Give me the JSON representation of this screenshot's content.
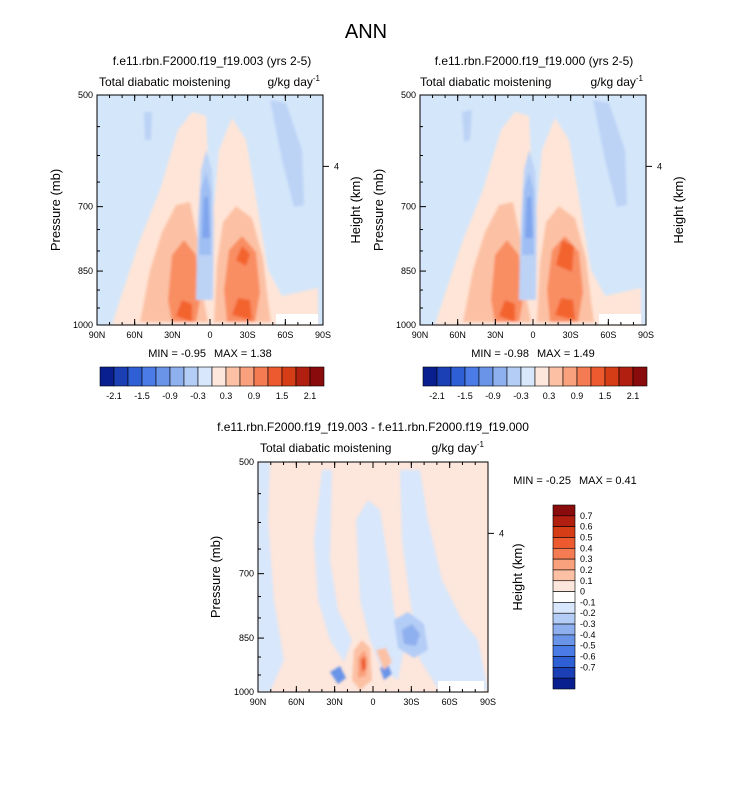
{
  "page_title": "ANN",
  "colors": {
    "background_field": "#d4e6fa",
    "positive": [
      "#ffe5d7",
      "#fcc1a4",
      "#f98e63",
      "#f3632f",
      "#d43d15"
    ],
    "negative": [
      "#bcd3f6",
      "#9fbef3",
      "#80a5ee",
      "#6a94e8"
    ]
  },
  "chart_data": [
    {
      "type": "heatmap",
      "id": "panel-a",
      "title": "f.e11.rbn.F2000.f19_f19.003 (yrs 2-5)",
      "left_label": "Total diabatic moistening",
      "right_label_base": "g/kg day",
      "right_label_exp": "-1",
      "xlabel": "",
      "ylabel": "Pressure (mb)",
      "y2label": "Height (km)",
      "x_ticks": [
        "90N",
        "60N",
        "30N",
        "0",
        "30S",
        "60S",
        "90S"
      ],
      "x_range": [
        90,
        -90
      ],
      "y_ticks": [
        500,
        700,
        850,
        1000
      ],
      "y_range": [
        500,
        1000
      ],
      "y2_ticks": [
        "4"
      ],
      "y2_tick_pressure": 620,
      "min": -0.95,
      "max": 1.38,
      "min_label": "MIN =",
      "min_value": "-0.95",
      "max_label": "MAX =",
      "max_value": "1.38",
      "colorbar_labels": [
        "-2.1",
        "-1.5",
        "-0.9",
        "-0.3",
        "0.3",
        "0.9",
        "1.5",
        "2.1"
      ],
      "colorbar_colors": [
        "#0a1f8f",
        "#1b3fb5",
        "#2f5fd4",
        "#4a7be6",
        "#6a94e8",
        "#8fb0ef",
        "#b4cdf6",
        "#d8e7fb",
        "#fde6dc",
        "#fcc1a4",
        "#f9a07c",
        "#f57b52",
        "#ee5a2f",
        "#d43d15",
        "#b01f10",
        "#8a0b0b"
      ]
    },
    {
      "type": "heatmap",
      "id": "panel-b",
      "title": "f.e11.rbn.F2000.f19_f19.000 (yrs 2-5)",
      "left_label": "Total diabatic moistening",
      "right_label_base": "g/kg day",
      "right_label_exp": "-1",
      "xlabel": "",
      "ylabel": "Pressure (mb)",
      "y2label": "Height (km)",
      "x_ticks": [
        "90N",
        "60N",
        "30N",
        "0",
        "30S",
        "60S",
        "90S"
      ],
      "x_range": [
        90,
        -90
      ],
      "y_ticks": [
        500,
        700,
        850,
        1000
      ],
      "y_range": [
        500,
        1000
      ],
      "y2_ticks": [
        "4"
      ],
      "y2_tick_pressure": 620,
      "min": -0.98,
      "max": 1.49,
      "min_label": "MIN =",
      "min_value": "-0.98",
      "max_label": "MAX =",
      "max_value": "1.49",
      "colorbar_labels": [
        "-2.1",
        "-1.5",
        "-0.9",
        "-0.3",
        "0.3",
        "0.9",
        "1.5",
        "2.1"
      ],
      "colorbar_colors": [
        "#0a1f8f",
        "#1b3fb5",
        "#2f5fd4",
        "#4a7be6",
        "#6a94e8",
        "#8fb0ef",
        "#b4cdf6",
        "#d8e7fb",
        "#fde6dc",
        "#fcc1a4",
        "#f9a07c",
        "#f57b52",
        "#ee5a2f",
        "#d43d15",
        "#b01f10",
        "#8a0b0b"
      ]
    },
    {
      "type": "heatmap",
      "id": "panel-diff",
      "title": "f.e11.rbn.F2000.f19_f19.003 - f.e11.rbn.F2000.f19_f19.000",
      "left_label": "Total diabatic moistening",
      "right_label_base": "g/kg day",
      "right_label_exp": "-1",
      "xlabel": "",
      "ylabel": "Pressure (mb)",
      "y2label": "Height (km)",
      "x_ticks": [
        "90N",
        "60N",
        "30N",
        "0",
        "30S",
        "60S",
        "90S"
      ],
      "x_range": [
        90,
        -90
      ],
      "y_ticks": [
        500,
        700,
        850,
        1000
      ],
      "y_range": [
        500,
        1000
      ],
      "y2_ticks": [
        "4"
      ],
      "y2_tick_pressure": 620,
      "min": -0.25,
      "max": 0.41,
      "min_label": "MIN =",
      "min_value": "-0.25",
      "max_label": "MAX =",
      "max_value": "0.41",
      "colorbar_labels": [
        "0.7",
        "0.6",
        "0.5",
        "0.4",
        "0.3",
        "0.2",
        "0.1",
        "0",
        "-0.1",
        "-0.2",
        "-0.3",
        "-0.4",
        "-0.5",
        "-0.6",
        "-0.7"
      ],
      "colorbar_colors": [
        "#8a0b0b",
        "#b01f10",
        "#d43d15",
        "#ee5a2f",
        "#f57b52",
        "#f9a07c",
        "#fcc1a4",
        "#fde6dc",
        "#ffffff",
        "#d8e7fb",
        "#b4cdf6",
        "#8fb0ef",
        "#6a94e8",
        "#4a7be6",
        "#2f5fd4",
        "#1b3fb5",
        "#0a1f8f"
      ]
    }
  ]
}
